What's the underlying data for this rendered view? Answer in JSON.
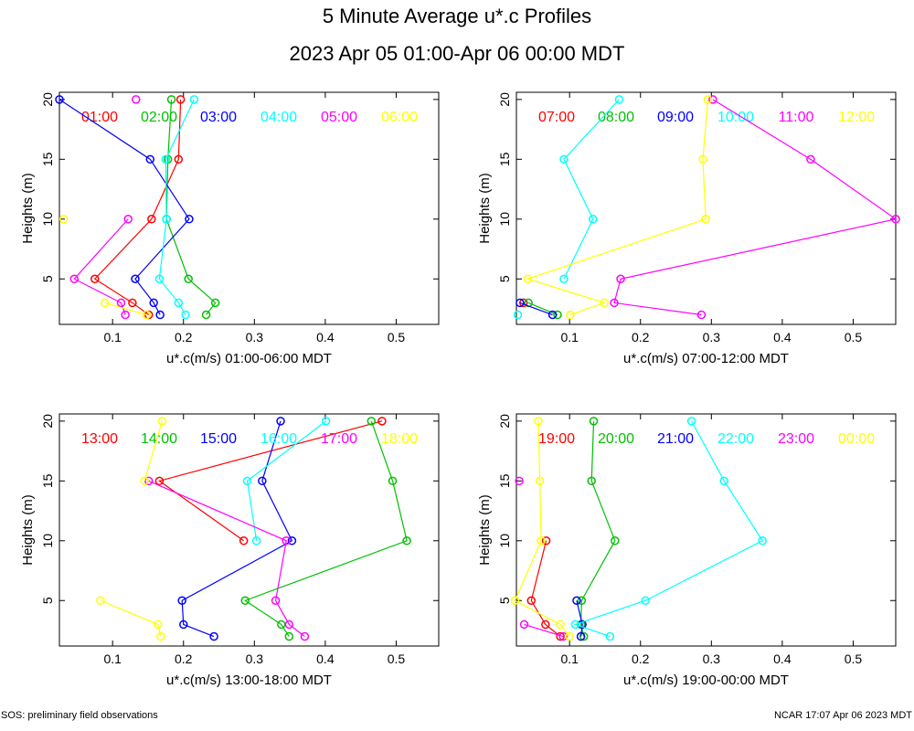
{
  "title": "5 Minute Average u*.c Profiles",
  "subtitle": "2023 Apr 05 01:00-Apr 06 00:00 MDT",
  "footer_left": "SOS: preliminary field observations",
  "footer_right": "NCAR 17:07 Apr 06 2023 MDT",
  "colors": [
    "#ff0000",
    "#00c000",
    "#0000ff",
    "#00ffff",
    "#ff00ff",
    "#ffff00"
  ],
  "chart_data": [
    {
      "type": "line",
      "xlabel": "u*.c(m/s) 01:00-06:00 MDT",
      "ylabel": "Heights (m)",
      "xlim": [
        0.025,
        0.56
      ],
      "ylim": [
        1.2,
        20.6
      ],
      "xticks": [
        "0.1",
        "0.2",
        "0.3",
        "0.4",
        "0.5"
      ],
      "yticks": [
        "5",
        "10",
        "15",
        "20"
      ],
      "heights": [
        2,
        3,
        5,
        10,
        15,
        20
      ],
      "series": [
        {
          "name": "01:00",
          "values": [
            0.151,
            0.128,
            0.075,
            0.155,
            0.193,
            0.196
          ]
        },
        {
          "name": "02:00",
          "values": [
            0.232,
            0.245,
            0.207,
            0.176,
            0.178,
            0.183
          ]
        },
        {
          "name": "03:00",
          "values": [
            0.167,
            0.158,
            0.132,
            0.208,
            0.153,
            0.025
          ]
        },
        {
          "name": "04:00",
          "values": [
            0.203,
            0.193,
            0.166,
            0.176,
            0.175,
            0.215
          ]
        },
        {
          "name": "05:00",
          "values": [
            0.118,
            0.112,
            0.046,
            0.122,
            null,
            0.133
          ]
        },
        {
          "name": "06:00",
          "values": [
            0.148,
            0.089,
            null,
            0.031,
            null,
            null
          ]
        }
      ]
    },
    {
      "type": "line",
      "xlabel": "u*.c(m/s) 07:00-12:00 MDT",
      "ylabel": "Heights (m)",
      "xlim": [
        0.025,
        0.56
      ],
      "ylim": [
        1.2,
        20.6
      ],
      "xticks": [
        "0.1",
        "0.2",
        "0.3",
        "0.4",
        "0.5"
      ],
      "yticks": [
        "5",
        "10",
        "15",
        "20"
      ],
      "heights": [
        2,
        3,
        5,
        10,
        15,
        20
      ],
      "series": [
        {
          "name": "07:00",
          "values": [
            null,
            0.035,
            null,
            null,
            null,
            null
          ]
        },
        {
          "name": "08:00",
          "values": [
            0.083,
            0.042,
            null,
            null,
            null,
            null
          ]
        },
        {
          "name": "09:00",
          "values": [
            0.076,
            0.03,
            null,
            null,
            null,
            null
          ]
        },
        {
          "name": "10:00",
          "values": [
            0.027,
            null,
            0.092,
            0.133,
            0.092,
            0.17
          ]
        },
        {
          "name": "11:00",
          "values": [
            0.286,
            0.163,
            0.172,
            0.56,
            0.44,
            0.302
          ]
        },
        {
          "name": "12:00",
          "values": [
            0.101,
            0.149,
            0.041,
            0.292,
            0.288,
            0.295
          ]
        }
      ]
    },
    {
      "type": "line",
      "xlabel": "u*.c(m/s) 13:00-18:00 MDT",
      "ylabel": "Heights (m)",
      "xlim": [
        0.025,
        0.56
      ],
      "ylim": [
        1.2,
        20.6
      ],
      "xticks": [
        "0.1",
        "0.2",
        "0.3",
        "0.4",
        "0.5"
      ],
      "yticks": [
        "5",
        "10",
        "15",
        "20"
      ],
      "heights": [
        2,
        3,
        5,
        10,
        15,
        20
      ],
      "series": [
        {
          "name": "13:00",
          "values": [
            null,
            null,
            null,
            0.285,
            0.166,
            0.48
          ]
        },
        {
          "name": "14:00",
          "values": [
            0.349,
            0.338,
            0.287,
            0.515,
            0.495,
            0.465
          ]
        },
        {
          "name": "15:00",
          "values": [
            0.243,
            0.2,
            0.198,
            0.353,
            0.311,
            0.337
          ]
        },
        {
          "name": "16:00",
          "values": [
            null,
            null,
            null,
            0.303,
            0.29,
            0.401
          ]
        },
        {
          "name": "17:00",
          "values": [
            0.371,
            0.349,
            0.33,
            0.345,
            0.151,
            null
          ]
        },
        {
          "name": "18:00",
          "values": [
            0.168,
            0.164,
            0.083,
            null,
            0.145,
            0.17
          ]
        }
      ]
    },
    {
      "type": "line",
      "xlabel": "u*.c(m/s) 19:00-00:00 MDT",
      "ylabel": "Heights (m)",
      "xlim": [
        0.025,
        0.56
      ],
      "ylim": [
        1.2,
        20.6
      ],
      "xticks": [
        "0.1",
        "0.2",
        "0.3",
        "0.4",
        "0.5"
      ],
      "yticks": [
        "5",
        "10",
        "15",
        "20"
      ],
      "heights": [
        2,
        3,
        5,
        10,
        15,
        20
      ],
      "series": [
        {
          "name": "19:00",
          "values": [
            0.087,
            0.066,
            0.046,
            0.067,
            null,
            null
          ]
        },
        {
          "name": "20:00",
          "values": [
            0.12,
            0.116,
            0.117,
            0.164,
            0.131,
            0.134
          ]
        },
        {
          "name": "21:00",
          "values": [
            0.116,
            0.118,
            0.11,
            null,
            null,
            null
          ]
        },
        {
          "name": "22:00",
          "values": [
            0.157,
            0.108,
            0.207,
            0.372,
            0.318,
            0.272
          ]
        },
        {
          "name": "23:00",
          "values": [
            0.091,
            0.036,
            null,
            null,
            0.029,
            null
          ]
        },
        {
          "name": "00:00",
          "values": [
            0.1,
            0.087,
            0.023,
            0.06,
            0.058,
            0.056
          ]
        }
      ]
    }
  ]
}
